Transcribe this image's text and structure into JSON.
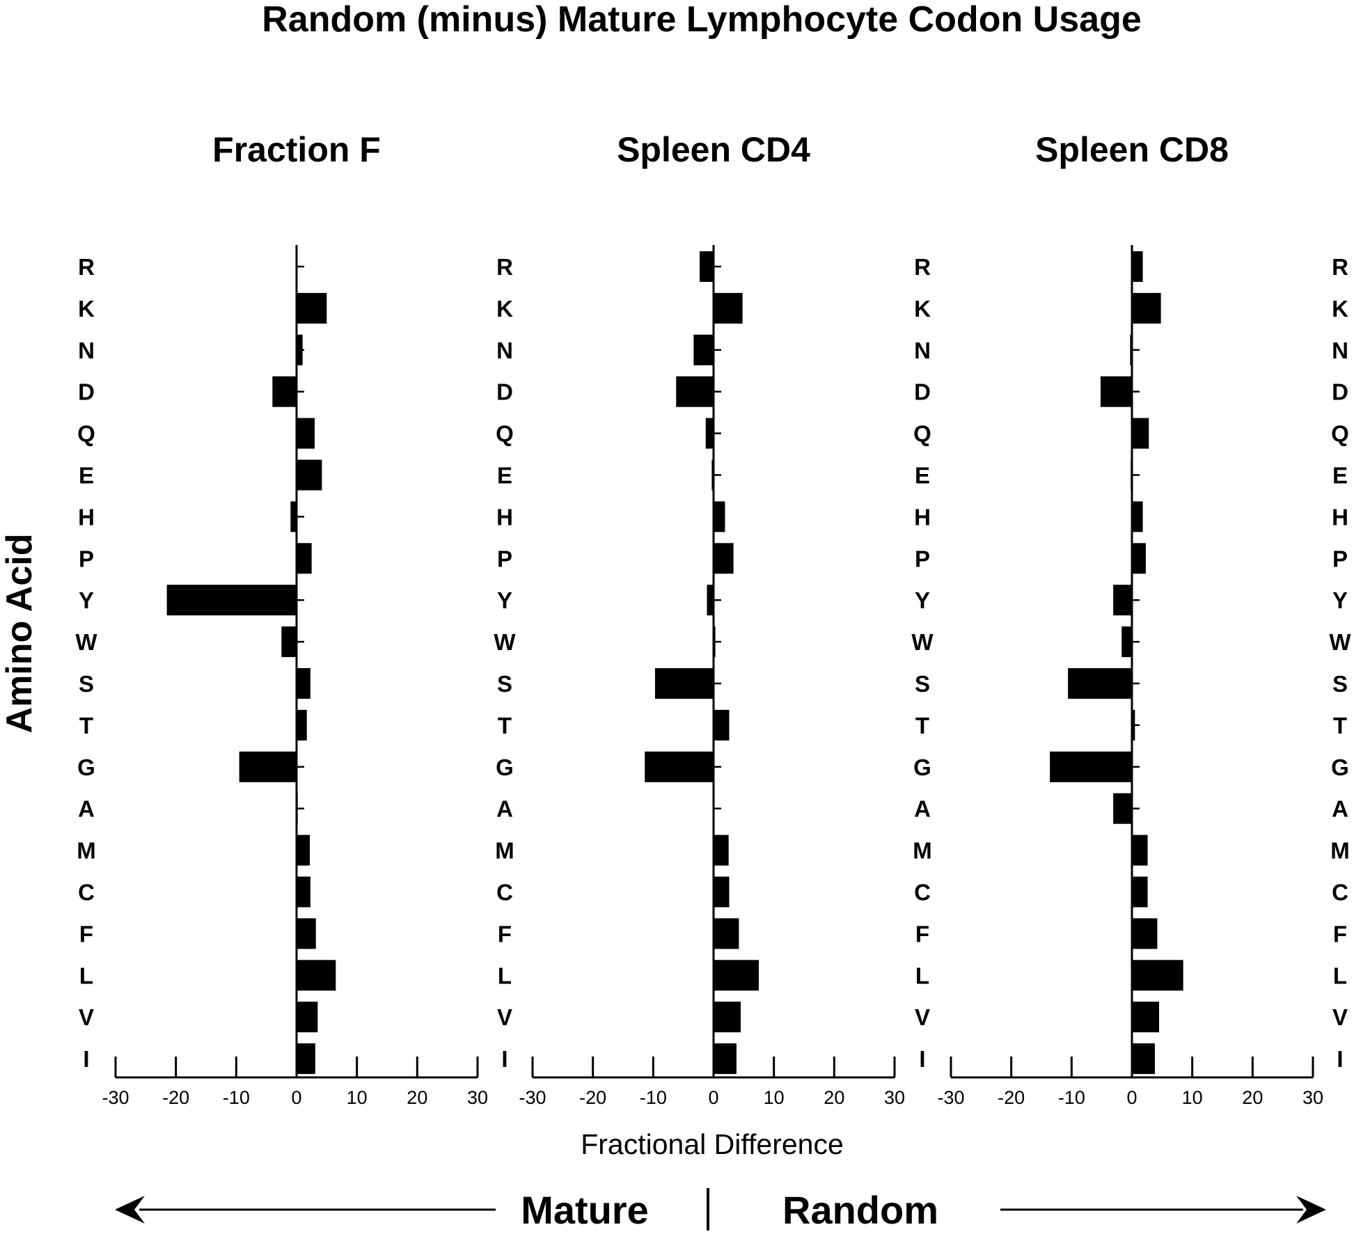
{
  "chart_data": {
    "type": "bar",
    "orientation": "horizontal",
    "title": "Random (minus) Mature Lymphocyte Codon Usage",
    "ylabel": "Amino Acid",
    "xlabel": "Fractional Difference",
    "xlim": [
      -30,
      30
    ],
    "xticks": [
      "-30",
      "-20",
      "-10",
      "0",
      "10",
      "20",
      "30"
    ],
    "categories": [
      "R",
      "K",
      "N",
      "D",
      "Q",
      "E",
      "H",
      "P",
      "Y",
      "W",
      "S",
      "T",
      "G",
      "A",
      "M",
      "C",
      "F",
      "L",
      "V",
      "I"
    ],
    "series": [
      {
        "name": "Fraction F",
        "values": [
          0,
          5,
          1,
          -4,
          3,
          4.2,
          -1,
          2.5,
          -21.5,
          -2.5,
          2.3,
          1.7,
          -9.5,
          0.2,
          2.2,
          2.3,
          3.2,
          6.5,
          3.5,
          3.1
        ]
      },
      {
        "name": "Spleen CD4",
        "values": [
          -2.3,
          4.8,
          -3.3,
          -6.2,
          -1.3,
          -0.3,
          1.9,
          3.3,
          -1.1,
          0.3,
          -9.7,
          2.6,
          -11.4,
          0,
          2.5,
          2.6,
          4.2,
          7.5,
          4.5,
          3.8
        ]
      },
      {
        "name": "Spleen CD8",
        "values": [
          1.8,
          4.8,
          -0.3,
          -5.2,
          2.8,
          -0.2,
          1.8,
          2.3,
          -3.1,
          -1.7,
          -10.6,
          0.5,
          -13.6,
          -3.1,
          2.6,
          2.6,
          4.2,
          8.5,
          4.5,
          3.8
        ]
      }
    ],
    "bar_color": "#000000",
    "grid": false,
    "legend": "none",
    "direction_labels": {
      "left": "Mature",
      "right": "Random"
    }
  }
}
